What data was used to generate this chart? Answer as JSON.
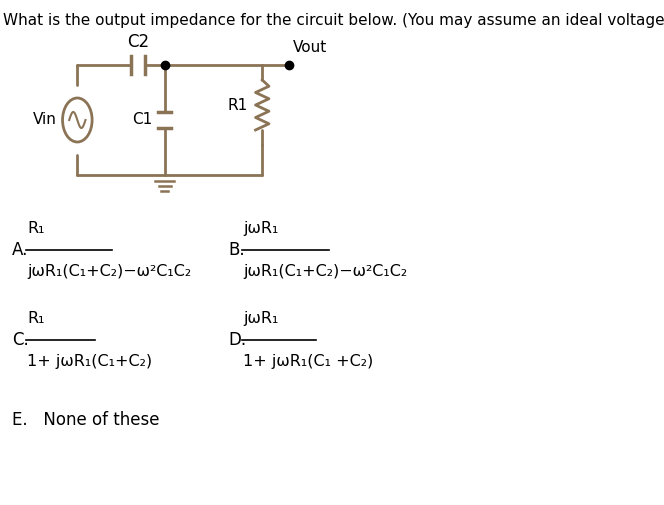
{
  "title": "What is the output impedance for the circuit below. (You may assume an ideal voltage source.)",
  "background_color": "#ffffff",
  "text_color": "#000000",
  "circuit_color": "#8B7355",
  "label_C2": "C2",
  "label_Vin": "Vin",
  "label_C1": "C1",
  "label_R1": "R1",
  "label_Vout": "Vout",
  "option_A_label": "A.",
  "option_A_num": "R₁",
  "option_A_den": "jωR₁(C₁+C₂)−ω²C₁C₂",
  "option_B_label": "B.",
  "option_B_num": "jωR₁",
  "option_B_den": "jωR₁(C₁+C₂)−ω²C₁C₂",
  "option_C_label": "C.",
  "option_C_num": "R₁",
  "option_C_den": "1+ jωR₁(C₁+C₂)",
  "option_D_label": "D.",
  "option_D_num": "jωR₁",
  "option_D_den": "1+ jωR₁(C₁ +C₂)",
  "option_E": "E.   None of these"
}
